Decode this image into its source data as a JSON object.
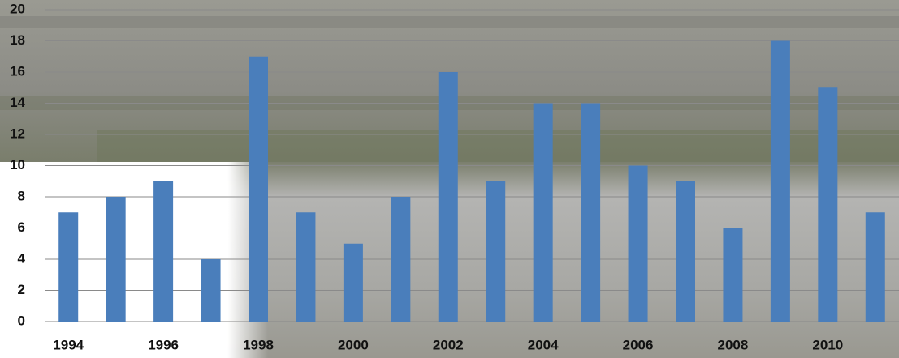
{
  "chart_data": {
    "type": "bar",
    "categories": [
      "1994",
      null,
      "1996",
      null,
      "1998",
      null,
      "2000",
      null,
      "2002",
      null,
      "2004",
      null,
      "2006",
      null,
      "2008",
      null,
      "2010",
      null
    ],
    "values": [
      7,
      8,
      9,
      4,
      17,
      7,
      5,
      8,
      16,
      9,
      14,
      14,
      10,
      9,
      6,
      18,
      15,
      7
    ],
    "color": "#4a7ebb",
    "ylim": [
      0,
      20
    ],
    "yticks": [
      0,
      2,
      4,
      6,
      8,
      10,
      12,
      14,
      16,
      18,
      20
    ],
    "grid": true
  }
}
